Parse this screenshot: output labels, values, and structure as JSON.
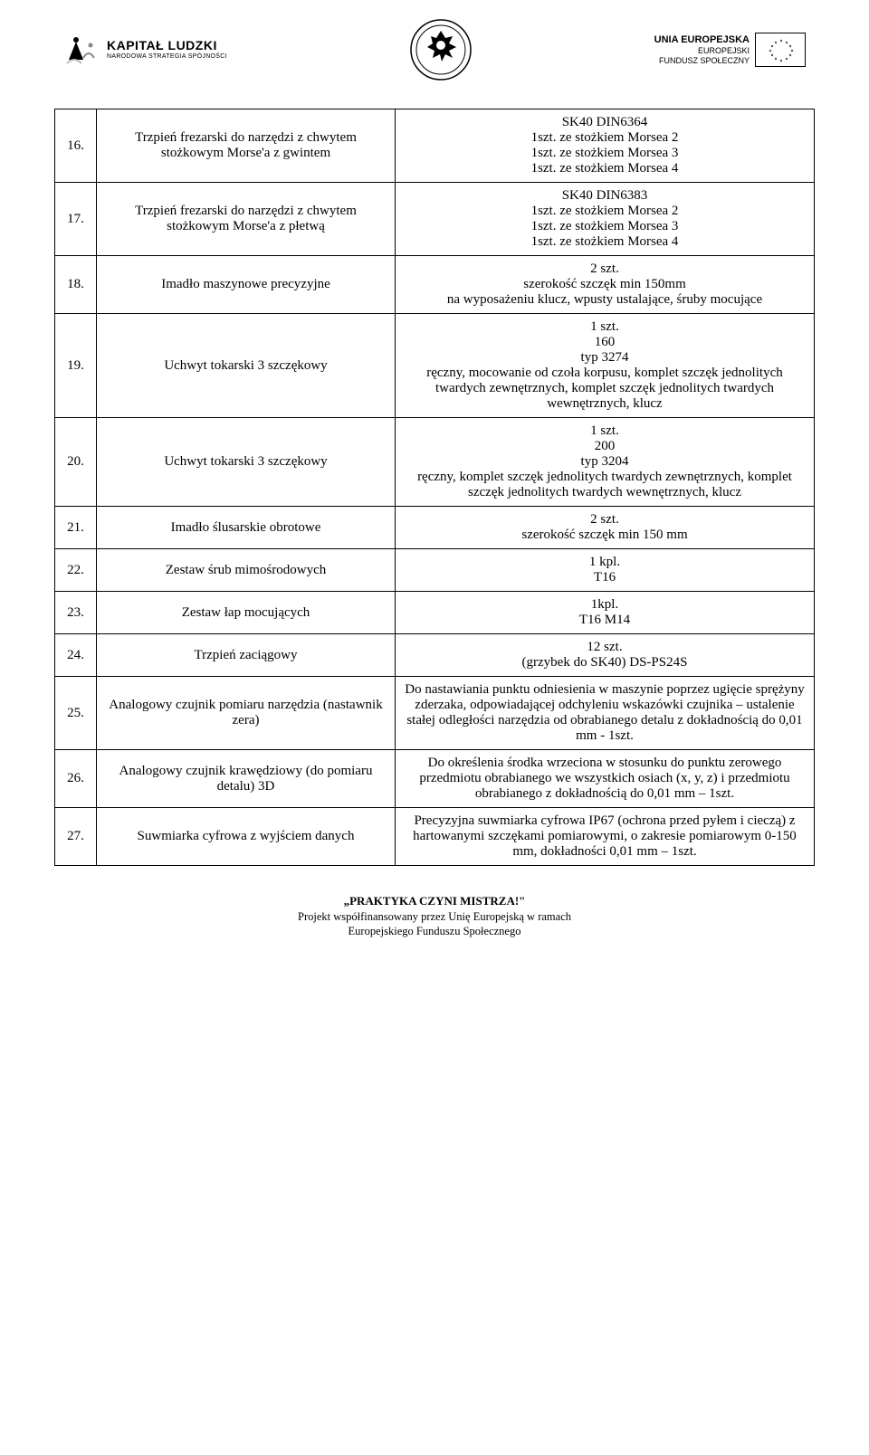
{
  "header": {
    "left": {
      "title": "KAPITAŁ LUDZKI",
      "sub": "NARODOWA STRATEGIA SPÓJNOŚCI"
    },
    "right": {
      "title": "UNIA EUROPEJSKA",
      "sub1": "EUROPEJSKI",
      "sub2": "FUNDUSZ SPOŁECZNY"
    }
  },
  "rows": [
    {
      "num": "16.",
      "name": "Trzpień frezarski do narzędzi  z chwytem stożkowym Morse'a z gwintem",
      "spec": "SK40 DIN6364\n1szt. ze stożkiem Morsea 2\n1szt. ze stożkiem Morsea 3\n1szt. ze stożkiem Morsea 4"
    },
    {
      "num": "17.",
      "name": "Trzpień frezarski do narzędzi  z chwytem stożkowym Morse'a z płetwą",
      "spec": "SK40 DIN6383\n1szt. ze stożkiem Morsea 2\n1szt. ze stożkiem Morsea 3\n1szt. ze stożkiem Morsea 4"
    },
    {
      "num": "18.",
      "name": "Imadło maszynowe precyzyjne",
      "spec": "2 szt.\nszerokość szczęk min 150mm\nna wyposażeniu klucz, wpusty ustalające, śruby mocujące"
    },
    {
      "num": "19.",
      "name": "Uchwyt tokarski 3 szczękowy",
      "spec": "1 szt.\n160\ntyp 3274\nręczny, mocowanie od czoła korpusu, komplet szczęk jednolitych twardych zewnętrznych, komplet szczęk jednolitych twardych wewnętrznych, klucz"
    },
    {
      "num": "20.",
      "name": "Uchwyt tokarski 3 szczękowy",
      "spec": "1 szt.\n200\ntyp 3204\nręczny, komplet szczęk jednolitych twardych zewnętrznych, komplet szczęk jednolitych twardych wewnętrznych, klucz"
    },
    {
      "num": "21.",
      "name": "Imadło ślusarskie obrotowe",
      "spec": "2 szt.\nszerokość szczęk min 150 mm"
    },
    {
      "num": "22.",
      "name": "Zestaw śrub mimośrodowych",
      "spec": "1 kpl.\nT16"
    },
    {
      "num": "23.",
      "name": "Zestaw łap mocujących",
      "spec": "1kpl.\nT16 M14"
    },
    {
      "num": "24.",
      "name": "Trzpień zaciągowy",
      "spec": "12 szt.\n(grzybek do SK40) DS-PS24S"
    },
    {
      "num": "25.",
      "name": "Analogowy czujnik pomiaru narzędzia (nastawnik zera)",
      "spec": "Do nastawiania punktu odniesienia  w maszynie poprzez ugięcie sprężyny zderzaka, odpowiadającej odchyleniu  wskazówki czujnika – ustalenie stałej odległości narzędzia od obrabianego detalu z dokładnością do     0,01 mm - 1szt."
    },
    {
      "num": "26.",
      "name": "Analogowy czujnik krawędziowy (do pomiaru detalu) 3D",
      "spec": "Do określenia środka wrzeciona w stosunku do punktu zerowego przedmiotu obrabianego we wszystkich osiach (x, y, z) i przedmiotu obrabianego z dokładnością do 0,01 mm – 1szt."
    },
    {
      "num": "27.",
      "name": "Suwmiarka cyfrowa z wyjściem danych",
      "spec": "Precyzyjna suwmiarka cyfrowa IP67 (ochrona przed pyłem i cieczą) z hartowanymi szczękami pomiarowymi, o zakresie pomiarowym 0-150 mm, dokładności 0,01 mm – 1szt."
    }
  ],
  "footer": {
    "title": "„PRAKTYKA CZYNI MISTRZA!\"",
    "line1": "Projekt współfinansowany przez Unię Europejską w ramach",
    "line2": "Europejskiego Funduszu Społecznego"
  }
}
